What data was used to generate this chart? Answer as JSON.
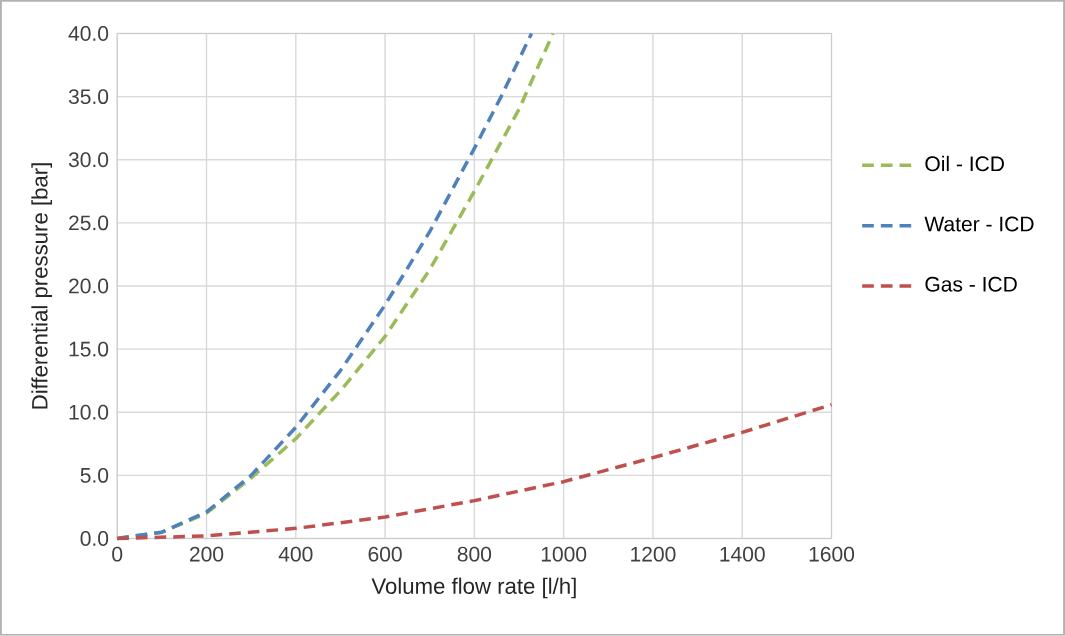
{
  "chart_data": {
    "type": "line",
    "xlabel": "Volume flow rate [l/h]",
    "ylabel": "Differential pressure  [bar]",
    "xlim": [
      0,
      1600
    ],
    "xticks": [
      0,
      200,
      400,
      600,
      800,
      1000,
      1200,
      1400,
      1600
    ],
    "ylim": [
      0,
      40
    ],
    "yticks": [
      {
        "value": 0,
        "label": "0.0"
      },
      {
        "value": 5,
        "label": "5.0"
      },
      {
        "value": 10,
        "label": "10.0"
      },
      {
        "value": 15,
        "label": "15.0"
      },
      {
        "value": 20,
        "label": "20.0"
      },
      {
        "value": 25,
        "label": "25.0"
      },
      {
        "value": 30,
        "label": "30.0"
      },
      {
        "value": 35,
        "label": "35.0"
      },
      {
        "value": 40,
        "label": "40.0"
      }
    ],
    "grid": true,
    "legend": "right",
    "marker": "none",
    "line_style": "dashed",
    "series": [
      {
        "name": "Oil - ICD",
        "color": "#9bbb59",
        "x": [
          0,
          100,
          200,
          300,
          400,
          500,
          600,
          700,
          800,
          900,
          976
        ],
        "values": [
          0,
          0.5,
          2.0,
          4.8,
          7.9,
          11.7,
          16.0,
          21.3,
          27.5,
          34.0,
          40
        ]
      },
      {
        "name": "Water - ICD",
        "color": "#4f81bd",
        "x": [
          0,
          100,
          200,
          300,
          400,
          500,
          600,
          700,
          800,
          860,
          928
        ],
        "values": [
          0,
          0.5,
          2.1,
          5.0,
          8.8,
          13.3,
          18.5,
          24.3,
          30.9,
          35.0,
          40
        ]
      },
      {
        "name": "Gas - ICD",
        "color": "#c0504d",
        "x": [
          0,
          200,
          400,
          600,
          800,
          1000,
          1200,
          1400,
          1600
        ],
        "values": [
          0,
          0.2,
          0.8,
          1.7,
          3.0,
          4.5,
          6.4,
          8.4,
          10.6
        ]
      }
    ]
  }
}
